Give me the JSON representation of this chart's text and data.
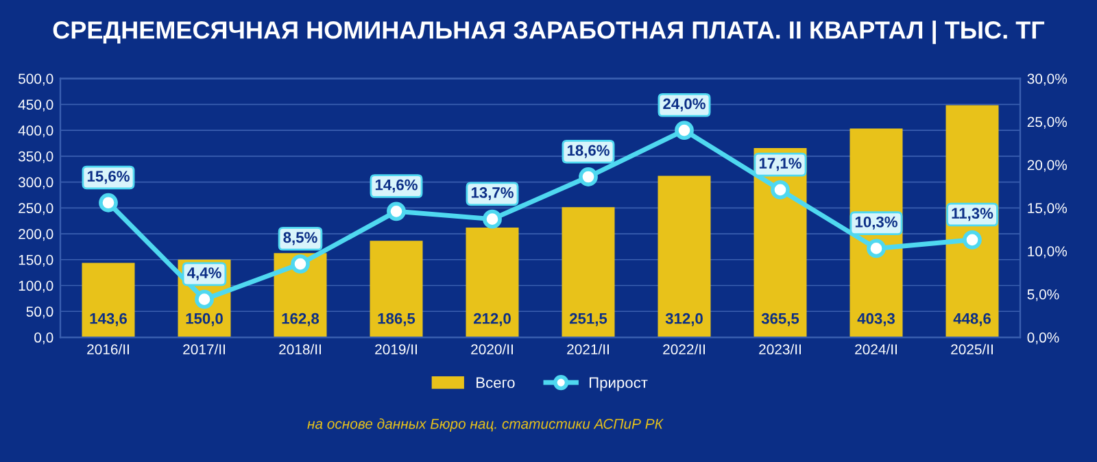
{
  "chart_data": {
    "type": "bar",
    "title": "СРЕДНЕМЕСЯЧНАЯ НОМИНАЛЬНАЯ ЗАРАБОТНАЯ ПЛАТА. II КВАРТАЛ | ТЫС. ТГ",
    "categories": [
      "2016/II",
      "2017/II",
      "2018/II",
      "2019/II",
      "2020/II",
      "2021/II",
      "2022/II",
      "2023/II",
      "2024/II",
      "2025/II"
    ],
    "series": [
      {
        "name": "Всего",
        "color": "#e8c21a",
        "values": [
          143.6,
          150.0,
          162.8,
          186.5,
          212.0,
          251.5,
          312.0,
          365.5,
          403.3,
          448.6
        ],
        "value_labels": [
          "143,6",
          "150,0",
          "162,8",
          "186,5",
          "212,0",
          "251,5",
          "312,0",
          "365,5",
          "403,3",
          "448,6"
        ]
      },
      {
        "name": "Прирост",
        "type": "line",
        "axis": "y2",
        "color": "#4fd8f0",
        "marker": "circle",
        "line_style": "solid",
        "values": [
          15.6,
          4.4,
          8.5,
          14.6,
          13.7,
          18.6,
          24.0,
          17.1,
          10.3,
          11.3
        ],
        "value_labels": [
          "15,6%",
          "4,4%",
          "8,5%",
          "14,6%",
          "13,7%",
          "18,6%",
          "24,0%",
          "17,1%",
          "10,3%",
          "11,3%"
        ]
      }
    ],
    "ylim": [
      0,
      500
    ],
    "yticks": [
      {
        "value": 0,
        "label": "0,0"
      },
      {
        "value": 50,
        "label": "50,0"
      },
      {
        "value": 100,
        "label": "100,0"
      },
      {
        "value": 150,
        "label": "150,0"
      },
      {
        "value": 200,
        "label": "200,0"
      },
      {
        "value": 250,
        "label": "250,0"
      },
      {
        "value": 300,
        "label": "300,0"
      },
      {
        "value": 350,
        "label": "350,0"
      },
      {
        "value": 400,
        "label": "400,0"
      },
      {
        "value": 450,
        "label": "450,0"
      },
      {
        "value": 500,
        "label": "500,0"
      }
    ],
    "y2lim": [
      0,
      30
    ],
    "y2ticks": [
      {
        "value": 0,
        "label": "0,0%"
      },
      {
        "value": 5,
        "label": "5,0%"
      },
      {
        "value": 10,
        "label": "10,0%"
      },
      {
        "value": 15,
        "label": "15,0%"
      },
      {
        "value": 20,
        "label": "20,0%"
      },
      {
        "value": 25,
        "label": "25,0%"
      },
      {
        "value": 30,
        "label": "30,0%"
      }
    ],
    "grid": "y",
    "legend": "bottom",
    "annotations": [
      "на основе данных Бюро нац. статистики АСПиР РК"
    ]
  }
}
